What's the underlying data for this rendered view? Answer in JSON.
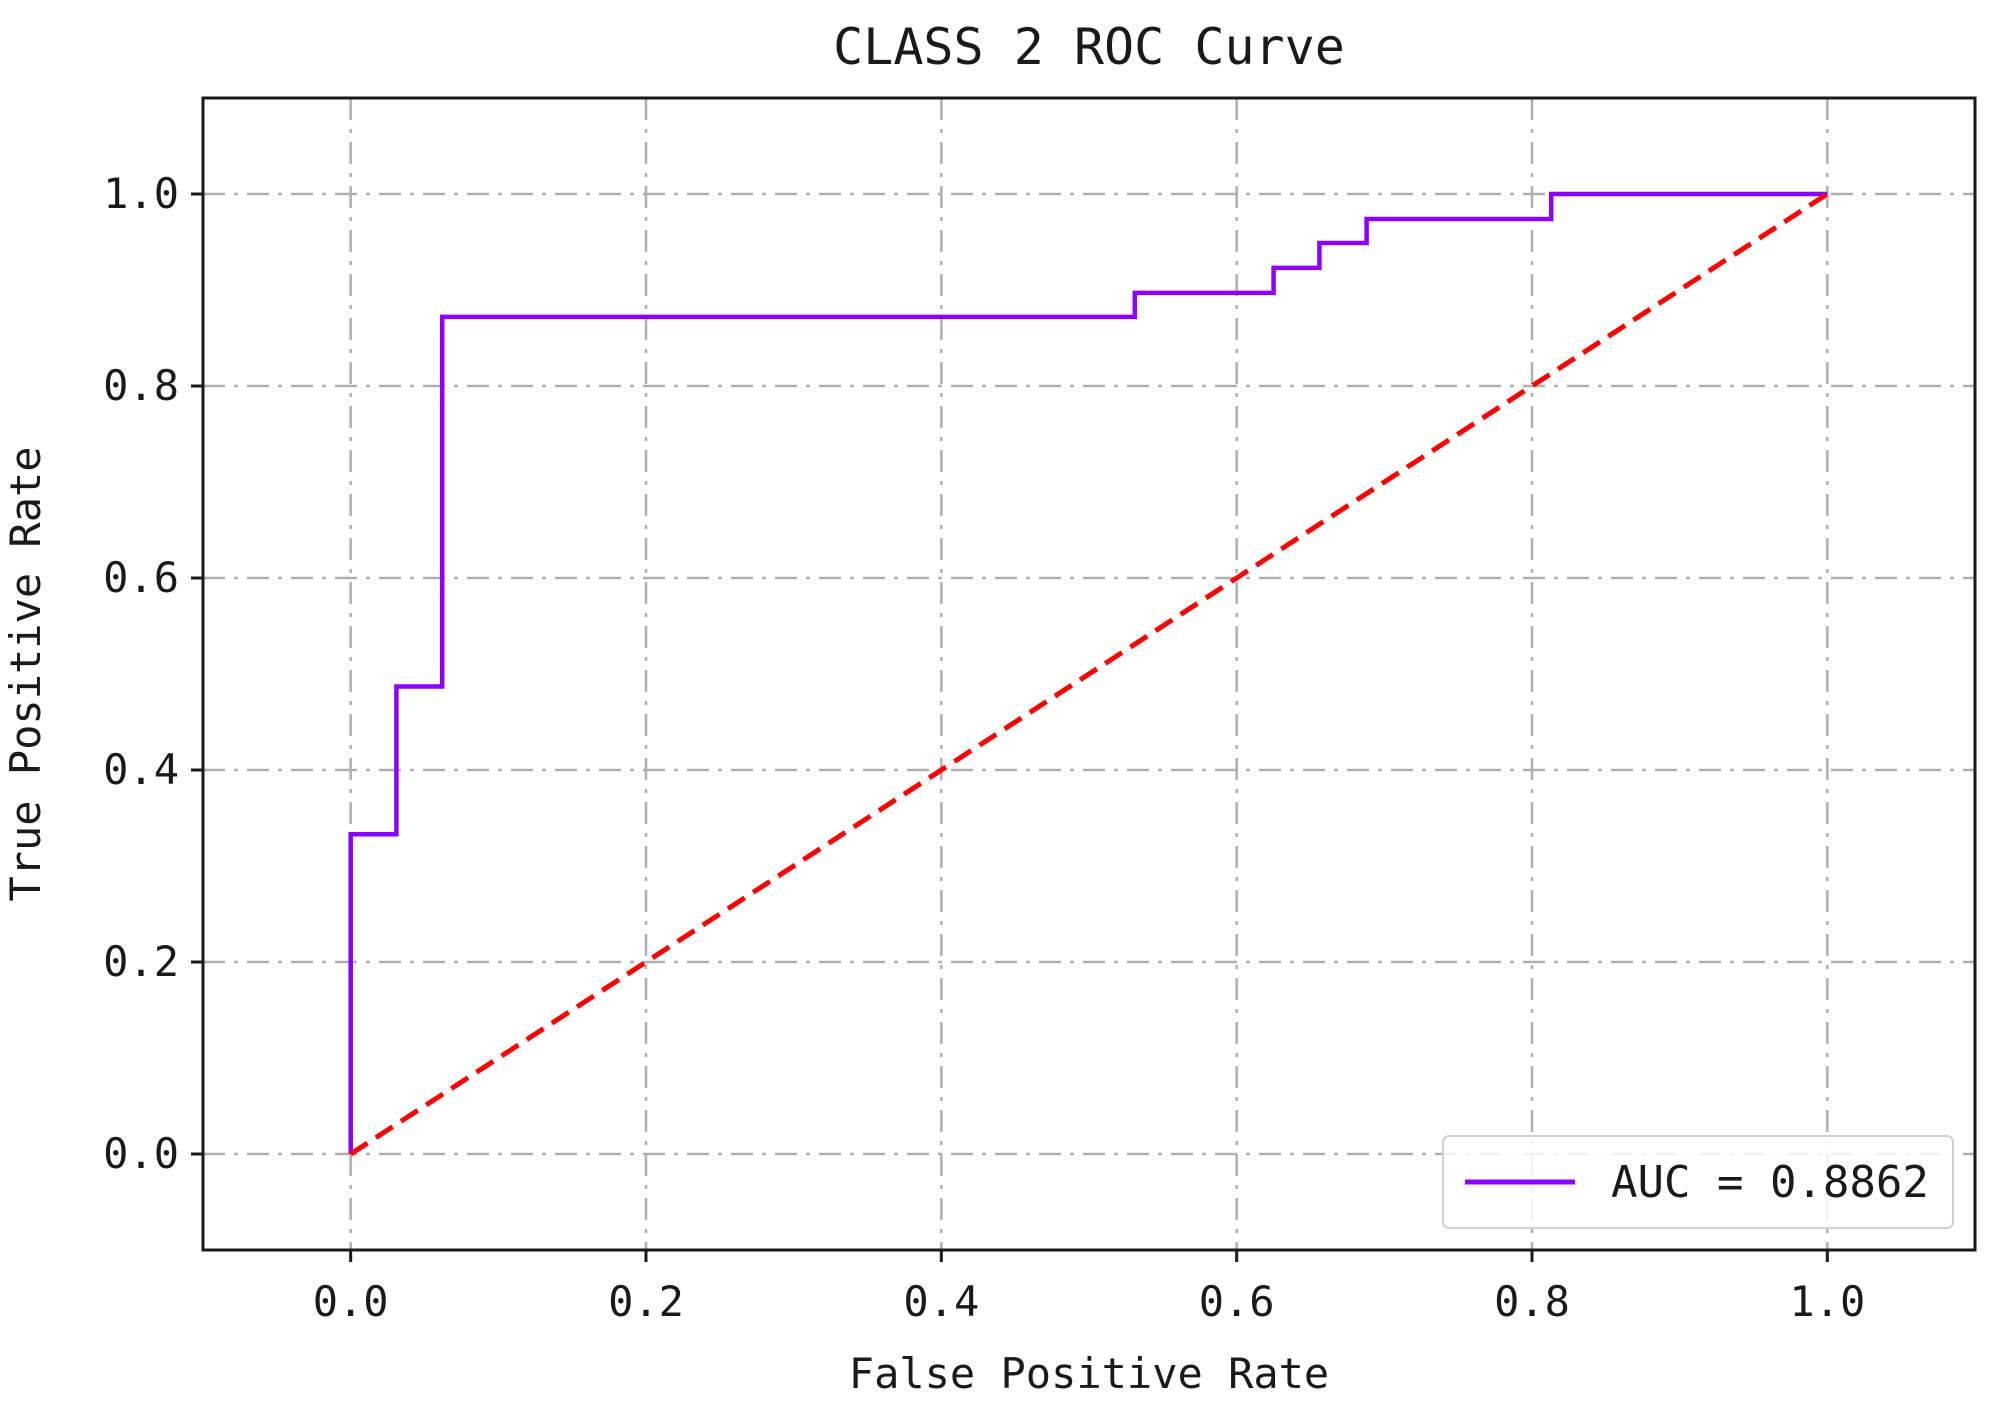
{
  "chart_data": {
    "type": "line",
    "title": "CLASS 2 ROC Curve",
    "xlabel": "False Positive Rate",
    "ylabel": "True Positive Rate",
    "xlim": [
      -0.1,
      1.1
    ],
    "ylim": [
      -0.1,
      1.1
    ],
    "xticks": [
      0.0,
      0.2,
      0.4,
      0.6,
      0.8,
      1.0
    ],
    "yticks": [
      0.0,
      0.2,
      0.4,
      0.6,
      0.8,
      1.0
    ],
    "xtick_labels": [
      "0.0",
      "0.2",
      "0.4",
      "0.6",
      "0.8",
      "1.0"
    ],
    "ytick_labels": [
      "0.0",
      "0.2",
      "0.4",
      "0.6",
      "0.8",
      "1.0"
    ],
    "grid": true,
    "legend_position": "lower-right",
    "series": [
      {
        "name": "AUC = 0.8862",
        "color": "#8b00ff",
        "style": "solid",
        "x": [
          0.0,
          0.0,
          0.031,
          0.031,
          0.062,
          0.062,
          0.531,
          0.531,
          0.625,
          0.625,
          0.656,
          0.656,
          0.688,
          0.688,
          0.813,
          0.813,
          1.0
        ],
        "y": [
          0.0,
          0.333,
          0.333,
          0.487,
          0.487,
          0.872,
          0.872,
          0.897,
          0.897,
          0.923,
          0.923,
          0.949,
          0.949,
          0.974,
          0.974,
          1.0,
          1.0
        ]
      },
      {
        "color": "#ff0000",
        "style": "dashed",
        "x": [
          0.0,
          1.0
        ],
        "y": [
          0.0,
          1.0
        ]
      }
    ]
  }
}
